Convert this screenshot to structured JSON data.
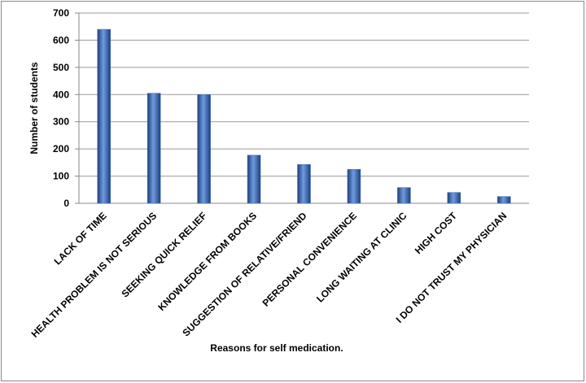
{
  "chart_data": {
    "type": "bar",
    "x_label": "Reasons for self medication.",
    "y_label": "Number of students",
    "categories": [
      "LACK OF TIME",
      "HEALTH PROBLEM IS NOT SERIOUS",
      "SEEKING QUICK RELIEF",
      "KNOWLEDGE FROM BOOKS",
      "SUGGESTION OF RELATIVE/FRIEND",
      "PERSONAL CONVENIENCE",
      "LONG WAITING AT CLINIC",
      "HIGH COST",
      "I DO  NOT TRUST MY PHYSICIAN"
    ],
    "values": [
      640,
      405,
      400,
      177,
      143,
      125,
      58,
      40,
      25
    ],
    "color": "#3a6fc4",
    "ylim": [
      0,
      700
    ],
    "yticks": [
      0,
      100,
      200,
      300,
      400,
      500,
      600,
      700
    ],
    "grid": true
  }
}
